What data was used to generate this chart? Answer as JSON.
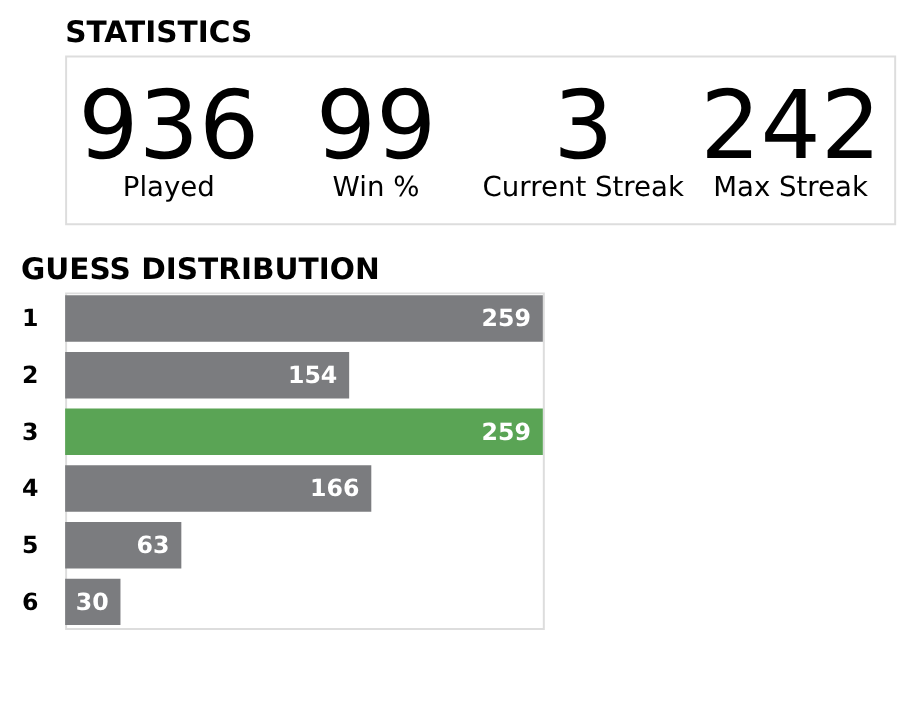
{
  "chart_data": [
    {
      "type": "other",
      "title": "STATISTICS",
      "categories": [
        "Played",
        "Win %",
        "Current Streak",
        "Max Streak"
      ],
      "values": [
        936,
        99,
        3,
        242
      ],
      "data_labels": true
    },
    {
      "type": "bar",
      "title": "GUESS DISTRIBUTION",
      "orientation": "horizontal",
      "categories": [
        "1",
        "2",
        "3",
        "4",
        "5",
        "6"
      ],
      "values": [
        259,
        154,
        259,
        166,
        63,
        30
      ],
      "colors": [
        "#7b7c7f",
        "#7b7c7f",
        "#5aa455",
        "#7b7c7f",
        "#7b7c7f",
        "#7b7c7f"
      ],
      "data_labels": true
    }
  ]
}
